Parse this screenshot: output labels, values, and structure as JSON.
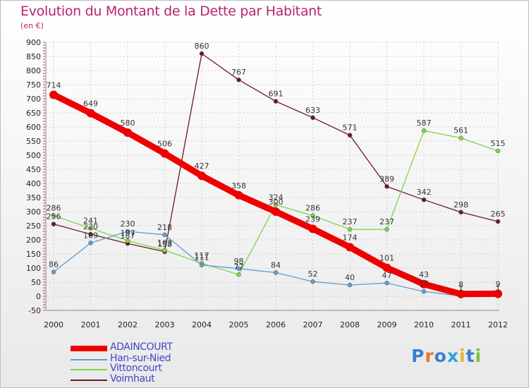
{
  "colors": {
    "title": "#b8246a",
    "legend_text": "#3f48c8"
  },
  "chart_data": {
    "type": "line",
    "title": "Evolution du Montant de la Dette par Habitant",
    "subtitle": "(en €)",
    "xlabel": "",
    "ylabel": "",
    "ylim": [
      -50,
      900
    ],
    "yticks": [
      -50,
      0,
      50,
      100,
      150,
      200,
      250,
      300,
      350,
      400,
      450,
      500,
      550,
      600,
      650,
      700,
      750,
      800,
      850,
      900
    ],
    "categories": [
      "2000",
      "2001",
      "2002",
      "2003",
      "2004",
      "2005",
      "2006",
      "2007",
      "2008",
      "2009",
      "2010",
      "2011",
      "2012"
    ],
    "grid": true,
    "legend_position": "bottom-left",
    "series": [
      {
        "name": "ADAINCOURT",
        "color": "#ee0000",
        "values": [
          714,
          649,
          580,
          506,
          427,
          358,
          300,
          239,
          174,
          101,
          43,
          8,
          9
        ]
      },
      {
        "name": "Han-sur-Nied",
        "color": "#5a9fd4",
        "values": [
          86,
          189,
          230,
          218,
          111,
          98,
          84,
          52,
          40,
          47,
          17,
          1,
          1
        ]
      },
      {
        "name": "Vittoncourt",
        "color": "#7fd446",
        "values": [
          286,
          241,
          197,
          163,
          117,
          77,
          324,
          286,
          237,
          237,
          587,
          561,
          515
        ]
      },
      {
        "name": "Voimhaut",
        "color": "#6b1a22",
        "values": [
          256,
          220,
          187,
          158,
          860,
          767,
          691,
          633,
          571,
          389,
          342,
          298,
          265
        ]
      }
    ]
  },
  "logo": {
    "text": "Proxiti"
  }
}
